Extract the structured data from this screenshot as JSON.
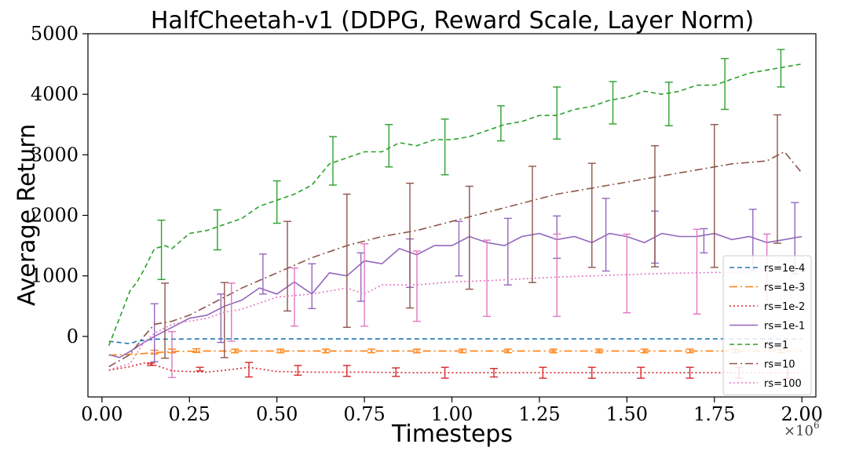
{
  "chart_data": {
    "type": "line",
    "title": "HalfCheetah-v1 (DDPG, Reward Scale, Layer Norm)",
    "xlabel": "Timesteps",
    "ylabel": "Average Return",
    "x_multiplier": "×10",
    "x_multiplier_exp": "6",
    "xlim": [
      -0.04,
      2.04
    ],
    "ylim": [
      -1000,
      5000
    ],
    "xticks": [
      0.0,
      0.25,
      0.5,
      0.75,
      1.0,
      1.25,
      1.5,
      1.75,
      2.0
    ],
    "xtick_labels": [
      "0.00",
      "0.25",
      "0.50",
      "0.75",
      "1.00",
      "1.25",
      "1.50",
      "1.75",
      "2.00"
    ],
    "yticks": [
      0,
      1000,
      2000,
      3000,
      4000,
      5000
    ],
    "ytick_labels": [
      "0",
      "1000",
      "2000",
      "3000",
      "4000",
      "5000"
    ],
    "grid": false,
    "legend_position": "lower-right",
    "series": [
      {
        "name": "rs=1e-4",
        "color": "#1f77b4",
        "dash": "6,4",
        "x": [
          0.02,
          0.05,
          0.08,
          0.1,
          0.15,
          0.2,
          0.3,
          0.5,
          0.75,
          1.0,
          1.25,
          1.5,
          1.75,
          2.0
        ],
        "y": [
          -80,
          -100,
          -120,
          -80,
          -45,
          -45,
          -40,
          -40,
          -40,
          -40,
          -40,
          -40,
          -40,
          -40
        ],
        "err_x": [],
        "err_y": [],
        "err_h": []
      },
      {
        "name": "rs=1e-3",
        "color": "#ff7f0e",
        "dash": "10,4,2,4",
        "x": [
          0.02,
          0.1,
          0.15,
          0.2,
          0.3,
          0.5,
          0.75,
          1.0,
          1.25,
          1.5,
          1.75,
          2.0
        ],
        "y": [
          -310,
          -290,
          -270,
          -250,
          -240,
          -240,
          -240,
          -240,
          -240,
          -240,
          -240,
          -240
        ],
        "err_x": [
          0.15,
          0.2,
          0.27,
          0.38,
          0.51,
          0.64,
          0.77,
          0.9,
          1.03,
          1.16,
          1.29,
          1.42,
          1.55,
          1.68,
          1.81,
          1.94
        ],
        "err_y": [
          -260,
          -240,
          -235,
          -240,
          -240,
          -240,
          -240,
          -240,
          -240,
          -240,
          -240,
          -240,
          -240,
          -240,
          -240,
          -240
        ],
        "err_h": [
          30,
          30,
          30,
          30,
          30,
          30,
          30,
          30,
          30,
          30,
          30,
          30,
          30,
          30,
          30,
          30
        ]
      },
      {
        "name": "rs=1e-2",
        "color": "#d62728",
        "dash": "2,3",
        "x": [
          0.02,
          0.08,
          0.12,
          0.15,
          0.2,
          0.3,
          0.35,
          0.42,
          0.5,
          0.6,
          0.75,
          0.9,
          1.0,
          1.25,
          1.5,
          1.75,
          2.0
        ],
        "y": [
          -560,
          -500,
          -440,
          -470,
          -570,
          -590,
          -560,
          -510,
          -580,
          -590,
          -590,
          -600,
          -600,
          -600,
          -600,
          -600,
          -600
        ],
        "err_x": [
          0.14,
          0.28,
          0.42,
          0.56,
          0.7,
          0.84,
          0.98,
          1.12,
          1.26,
          1.4,
          1.54,
          1.68,
          1.82,
          1.96
        ],
        "err_y": [
          -460,
          -540,
          -550,
          -560,
          -570,
          -590,
          -600,
          -600,
          -600,
          -600,
          -600,
          -600,
          -600,
          -600
        ],
        "err_h": [
          20,
          30,
          120,
          80,
          90,
          70,
          90,
          70,
          90,
          90,
          90,
          90,
          90,
          90
        ]
      },
      {
        "name": "rs=1e-1",
        "color": "#9467bd",
        "dash": "",
        "x": [
          0.02,
          0.05,
          0.08,
          0.12,
          0.15,
          0.2,
          0.25,
          0.3,
          0.35,
          0.4,
          0.45,
          0.5,
          0.55,
          0.6,
          0.65,
          0.7,
          0.75,
          0.8,
          0.85,
          0.9,
          0.95,
          1.0,
          1.05,
          1.1,
          1.15,
          1.2,
          1.25,
          1.3,
          1.35,
          1.4,
          1.45,
          1.5,
          1.55,
          1.6,
          1.65,
          1.7,
          1.75,
          1.8,
          1.85,
          1.9,
          1.95,
          2.0
        ],
        "y": [
          -300,
          -350,
          -250,
          -100,
          0,
          150,
          300,
          350,
          500,
          600,
          800,
          700,
          900,
          700,
          1050,
          1000,
          1250,
          1200,
          1450,
          1350,
          1500,
          1500,
          1650,
          1550,
          1500,
          1650,
          1700,
          1600,
          1650,
          1550,
          1700,
          1650,
          1550,
          1700,
          1650,
          1650,
          1700,
          1600,
          1650,
          1550,
          1600,
          1650
        ],
        "err_x": [
          0.15,
          0.34,
          0.46,
          0.6,
          0.74,
          0.88,
          1.02,
          1.16,
          1.3,
          1.44,
          1.58,
          1.72,
          1.86,
          1.98
        ],
        "err_y": [
          60,
          300,
          1030,
          830,
          980,
          1210,
          1450,
          1400,
          1640,
          1680,
          1640,
          1580,
          1600,
          1620
        ],
        "err_h": [
          480,
          400,
          330,
          370,
          400,
          400,
          450,
          550,
          350,
          600,
          430,
          200,
          500,
          590
        ]
      },
      {
        "name": "rs=1",
        "color": "#2ca02c",
        "dash": "6,4",
        "x": [
          0.02,
          0.05,
          0.08,
          0.1,
          0.12,
          0.15,
          0.18,
          0.2,
          0.25,
          0.3,
          0.35,
          0.4,
          0.45,
          0.5,
          0.55,
          0.6,
          0.65,
          0.7,
          0.75,
          0.8,
          0.85,
          0.9,
          0.95,
          1.0,
          1.05,
          1.1,
          1.15,
          1.2,
          1.25,
          1.3,
          1.35,
          1.4,
          1.45,
          1.5,
          1.55,
          1.6,
          1.65,
          1.7,
          1.75,
          1.8,
          1.85,
          1.9,
          1.95,
          2.0
        ],
        "y": [
          -150,
          300,
          750,
          900,
          1100,
          1450,
          1500,
          1450,
          1700,
          1750,
          1850,
          1950,
          2150,
          2250,
          2350,
          2500,
          2850,
          2950,
          3050,
          3050,
          3200,
          3150,
          3250,
          3250,
          3300,
          3400,
          3500,
          3550,
          3650,
          3650,
          3750,
          3800,
          3900,
          3950,
          4050,
          4000,
          4050,
          4150,
          4150,
          4250,
          4350,
          4400,
          4450,
          4500
        ],
        "err_x": [
          0.17,
          0.33,
          0.5,
          0.66,
          0.82,
          0.98,
          1.14,
          1.3,
          1.46,
          1.62,
          1.78,
          1.94
        ],
        "err_y": [
          1430,
          1760,
          2220,
          2900,
          3150,
          3130,
          3520,
          3690,
          3860,
          3840,
          4170,
          4430
        ],
        "err_h": [
          490,
          330,
          350,
          400,
          350,
          460,
          290,
          430,
          350,
          360,
          420,
          310
        ]
      },
      {
        "name": "rs=10",
        "color": "#8c564b",
        "dash": "10,4,2,4",
        "x": [
          0.02,
          0.05,
          0.08,
          0.12,
          0.15,
          0.2,
          0.25,
          0.3,
          0.35,
          0.4,
          0.5,
          0.6,
          0.7,
          0.8,
          0.9,
          1.0,
          1.1,
          1.2,
          1.3,
          1.4,
          1.5,
          1.6,
          1.7,
          1.8,
          1.9,
          1.95,
          2.0
        ],
        "y": [
          -500,
          -400,
          -300,
          0,
          200,
          250,
          350,
          500,
          650,
          800,
          1050,
          1300,
          1500,
          1650,
          1750,
          1900,
          2050,
          2200,
          2350,
          2450,
          2550,
          2650,
          2750,
          2850,
          2900,
          3050,
          2700
        ],
        "err_x": [
          0.18,
          0.35,
          0.53,
          0.7,
          0.88,
          1.05,
          1.23,
          1.4,
          1.58,
          1.75,
          1.93
        ],
        "err_y": [
          260,
          270,
          1160,
          1250,
          1500,
          1630,
          1850,
          2000,
          2150,
          2320,
          2600
        ],
        "err_h": [
          620,
          620,
          740,
          1100,
          1030,
          850,
          960,
          860,
          1000,
          1180,
          1060
        ]
      },
      {
        "name": "rs=100",
        "color": "#e377c2",
        "dash": "2,3",
        "x": [
          0.02,
          0.05,
          0.08,
          0.12,
          0.15,
          0.2,
          0.25,
          0.3,
          0.35,
          0.4,
          0.5,
          0.6,
          0.7,
          0.75,
          0.8,
          0.9,
          1.0,
          1.1,
          1.2,
          1.3,
          1.4,
          1.5,
          1.6,
          1.7,
          1.8,
          1.9,
          2.0
        ],
        "y": [
          -550,
          -500,
          -450,
          -100,
          50,
          200,
          250,
          300,
          400,
          450,
          650,
          700,
          800,
          700,
          850,
          850,
          900,
          920,
          950,
          980,
          1000,
          1020,
          1040,
          1050,
          1060,
          1070,
          1080
        ],
        "err_x": [
          0.2,
          0.37,
          0.55,
          0.75,
          0.9,
          1.1,
          1.3,
          1.5,
          1.7,
          1.9
        ],
        "err_y": [
          -300,
          400,
          650,
          850,
          830,
          960,
          1010,
          1040,
          1070,
          1090
        ],
        "err_h": [
          380,
          480,
          480,
          680,
          580,
          630,
          680,
          650,
          700,
          600
        ]
      }
    ]
  }
}
